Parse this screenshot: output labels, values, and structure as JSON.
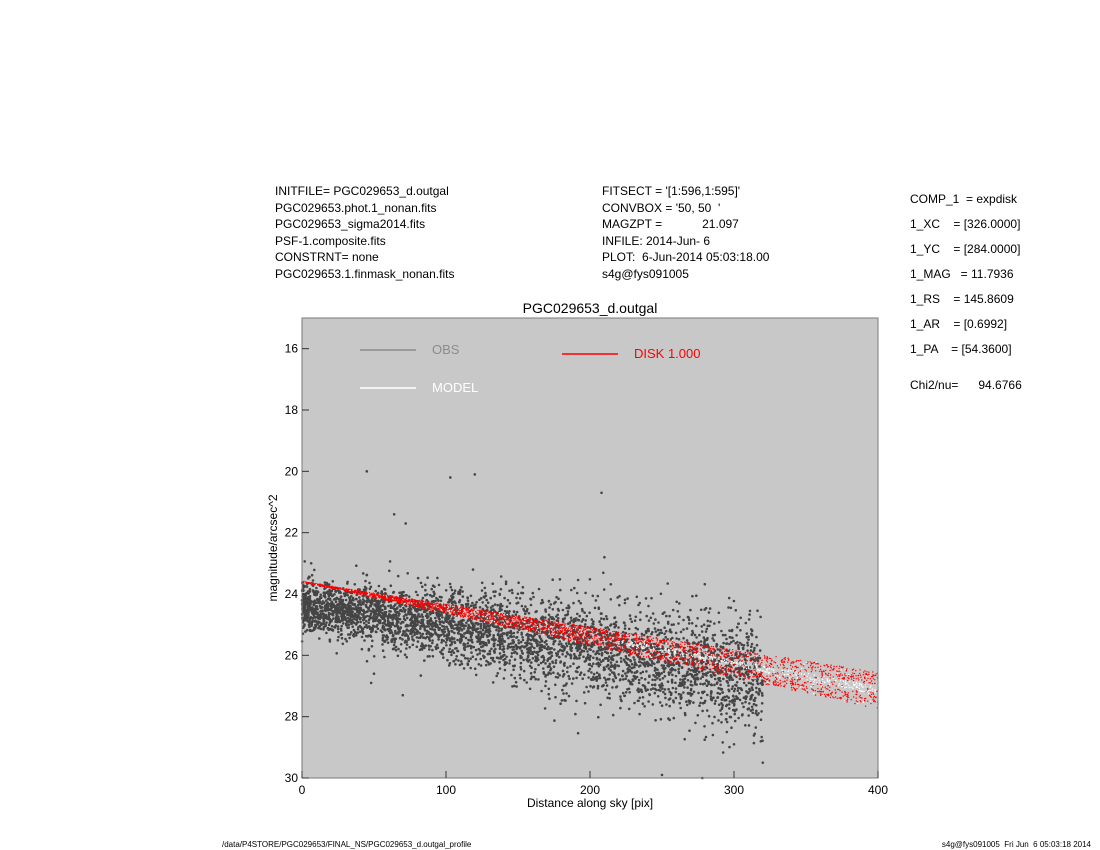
{
  "header_left": [
    "INITFILE= PGC029653_d.outgal",
    "PGC029653.phot.1_nonan.fits",
    "PGC029653_sigma2014.fits",
    "PSF-1.composite.fits",
    "CONSTRNT= none",
    "PGC029653.1.finmask_nonan.fits"
  ],
  "header_mid": [
    "FITSECT = '[1:596,1:595]'",
    "CONVBOX = '50, 50  '",
    "MAGZPT =            21.097",
    "INFILE: 2014-Jun- 6",
    "PLOT:  6-Jun-2014 05:03:18.00",
    "s4g@fys091005"
  ],
  "params": [
    "COMP_1  = expdisk",
    "1_XC    = [326.0000]",
    "1_YC    = [284.0000]",
    "1_MAG   = 11.7936",
    "1_RS    = 145.8609",
    "1_AR    = [0.6992]",
    "1_PA    = [54.3600]"
  ],
  "chi": "Chi2/nu=      94.6766",
  "footer_left": "/data/P4STORE/PGC029653/FINAL_NS/PGC029653_d.outgal_profile",
  "footer_right": "s4g@fys091005  Fri Jun  6 05:03:18 2014",
  "colors": {
    "plot_bg": "#c8c8c8",
    "obs": "#454545",
    "obs_legend": "#8c8c8c",
    "model": "#ffffff",
    "disk": "#ff0000"
  },
  "chart_data": {
    "type": "scatter",
    "title": "PGC029653_d.outgal",
    "xlabel": "Distance along sky [pix]",
    "ylabel": "magnitude/arcsec^2",
    "xlim": [
      0,
      400
    ],
    "ylim": [
      15,
      30
    ],
    "y_inverted": true,
    "x_ticks": [
      0,
      100,
      200,
      300,
      400
    ],
    "y_ticks": [
      16,
      18,
      20,
      22,
      24,
      26,
      28,
      30
    ],
    "legend": [
      {
        "label": "OBS",
        "color": "#8c8c8c"
      },
      {
        "label": "MODEL",
        "color": "#ffffff"
      },
      {
        "label": "DISK  1.000",
        "color": "#ff0000"
      }
    ],
    "series": [
      {
        "name": "OBS",
        "trend": {
          "x": [
            0,
            100,
            200,
            300
          ],
          "y": [
            24.4,
            24.9,
            25.8,
            26.6
          ]
        },
        "scatter_sigma": 0.6,
        "x_range": [
          0,
          320
        ],
        "outliers": [
          [
            45,
            20.0
          ],
          [
            103,
            20.2
          ],
          [
            120,
            20.1
          ],
          [
            208,
            20.7
          ],
          [
            64,
            21.4
          ],
          [
            72,
            21.7
          ],
          [
            210,
            22.8
          ],
          [
            240,
            25.4
          ],
          [
            300,
            28.9
          ],
          [
            320,
            29.5
          ],
          [
            250,
            29.9
          ],
          [
            278,
            30.0
          ],
          [
            70,
            27.3
          ],
          [
            48,
            26.9
          ],
          [
            50,
            26.6
          ]
        ]
      },
      {
        "name": "MODEL",
        "upper": {
          "x": [
            0,
            400
          ],
          "y": [
            23.6,
            26.55
          ]
        },
        "lower": {
          "x": [
            0,
            400
          ],
          "y": [
            23.6,
            27.75
          ]
        }
      },
      {
        "name": "DISK  1.000",
        "upper": {
          "x": [
            0,
            400
          ],
          "y": [
            23.6,
            26.55
          ]
        },
        "lower": {
          "x": [
            0,
            400
          ],
          "y": [
            23.6,
            27.75
          ]
        }
      }
    ]
  }
}
